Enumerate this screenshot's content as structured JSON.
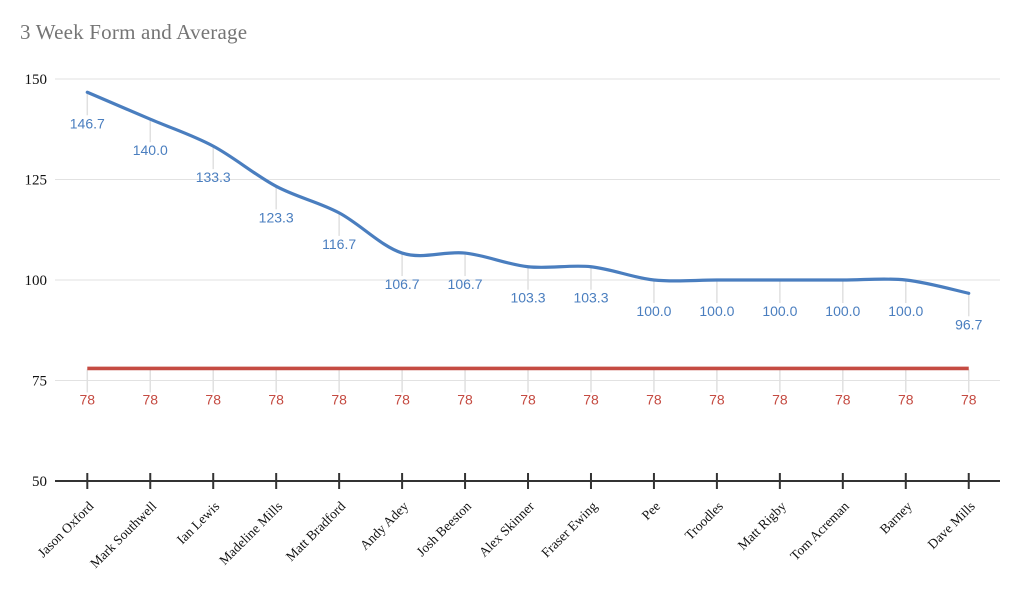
{
  "chart_data": {
    "type": "line",
    "title": "3 Week Form and Average",
    "smooth": true,
    "grid": "horizontal",
    "legend": "none",
    "xlabel": "",
    "ylabel": "",
    "ylim": [
      50,
      150
    ],
    "yticks": [
      "50",
      "75",
      "100",
      "125",
      "150"
    ],
    "ytick_values": [
      50,
      75,
      100,
      125,
      150
    ],
    "categories": [
      "Jason Oxford",
      "Mark Southwell",
      "Ian Lewis",
      "Madeline Mills",
      "Matt Bradford",
      "Andy Adey",
      "Josh Beeston",
      "Alex Skinner",
      "Fraser Ewing",
      "Pee",
      "Troodles",
      "Matt Rigby",
      "Tom Acreman",
      "Barney",
      "Dave Mills"
    ],
    "series": [
      {
        "id": "form",
        "color": "#4a7ebf",
        "style": "smooth-line",
        "values": [
          146.7,
          140.0,
          133.3,
          123.3,
          116.7,
          106.7,
          106.7,
          103.3,
          103.3,
          100.0,
          100.0,
          100.0,
          100.0,
          100.0,
          96.7
        ],
        "labels": [
          "146.7",
          "140.0",
          "133.3",
          "123.3",
          "116.7",
          "106.7",
          "106.7",
          "103.3",
          "103.3",
          "100.0",
          "100.0",
          "100.0",
          "100.0",
          "100.0",
          "96.7"
        ]
      },
      {
        "id": "average",
        "color": "#c54b42",
        "style": "flat-line",
        "values": [
          78,
          78,
          78,
          78,
          78,
          78,
          78,
          78,
          78,
          78,
          78,
          78,
          78,
          78,
          78
        ],
        "labels": [
          "78",
          "78",
          "78",
          "78",
          "78",
          "78",
          "78",
          "78",
          "78",
          "78",
          "78",
          "78",
          "78",
          "78",
          "78"
        ]
      }
    ]
  }
}
